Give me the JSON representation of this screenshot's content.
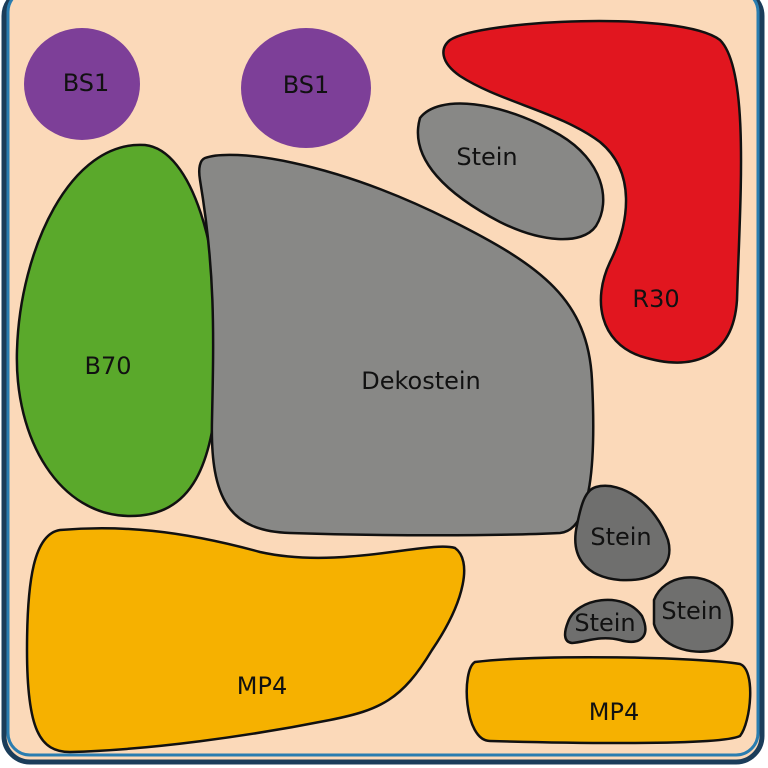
{
  "colors": {
    "background": "#fbd9b9",
    "border": "#2a7db0",
    "bs1": "#7d3f98",
    "b70": "#5aa92b",
    "stone": "#888886",
    "stone_small": "#6f6f6e",
    "r30": "#e1161f",
    "mp4": "#f6b100"
  },
  "areas": [
    {
      "id": "bs1-left",
      "label": "BS1"
    },
    {
      "id": "bs1-right",
      "label": "BS1"
    },
    {
      "id": "r30",
      "label": "R30"
    },
    {
      "id": "stein-top",
      "label": "Stein"
    },
    {
      "id": "b70",
      "label": "B70"
    },
    {
      "id": "dekostein",
      "label": "Dekostein"
    },
    {
      "id": "mp4-left",
      "label": "MP4"
    },
    {
      "id": "mp4-right",
      "label": "MP4"
    },
    {
      "id": "stein-mid",
      "label": "Stein"
    },
    {
      "id": "stein-small-left",
      "label": "Stein"
    },
    {
      "id": "stein-small-right",
      "label": "Stein"
    }
  ]
}
